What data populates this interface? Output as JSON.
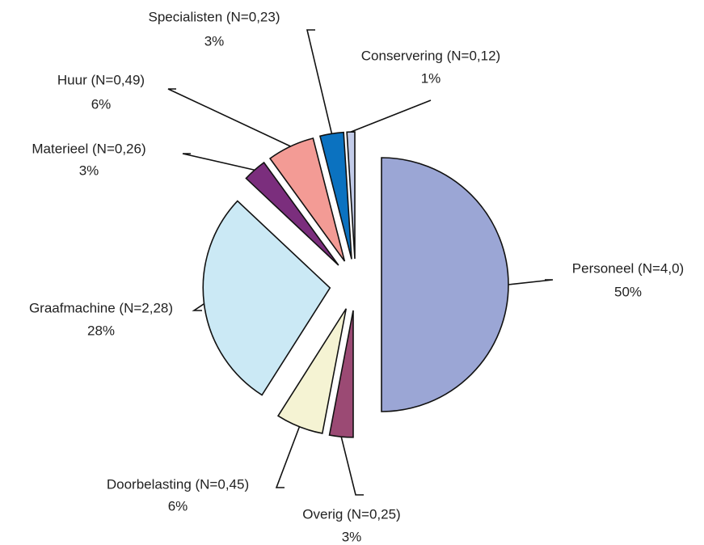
{
  "chart_data": {
    "type": "pie",
    "categories": [
      "Personeel (N=4,0)",
      "Overig (N=0,25)",
      "Doorbelasting (N=0,45)",
      "Graafmachine (N=2,28)",
      "Materieel (N=0,26)",
      "Huur (N=0,49)",
      "Specialisten (N=0,23)",
      "Conservering (N=0,12)"
    ],
    "values": [
      50,
      3,
      6,
      28,
      3,
      6,
      3,
      1
    ],
    "value_labels": [
      "50%",
      "3%",
      "6%",
      "28%",
      "3%",
      "6%",
      "3%",
      "1%"
    ],
    "colors": [
      "#9ba6d5",
      "#9b4a74",
      "#f5f3d3",
      "#cbe9f5",
      "#7b2e7d",
      "#f39b95",
      "#0b72c0",
      "#c3cce9"
    ],
    "exploded": true
  }
}
